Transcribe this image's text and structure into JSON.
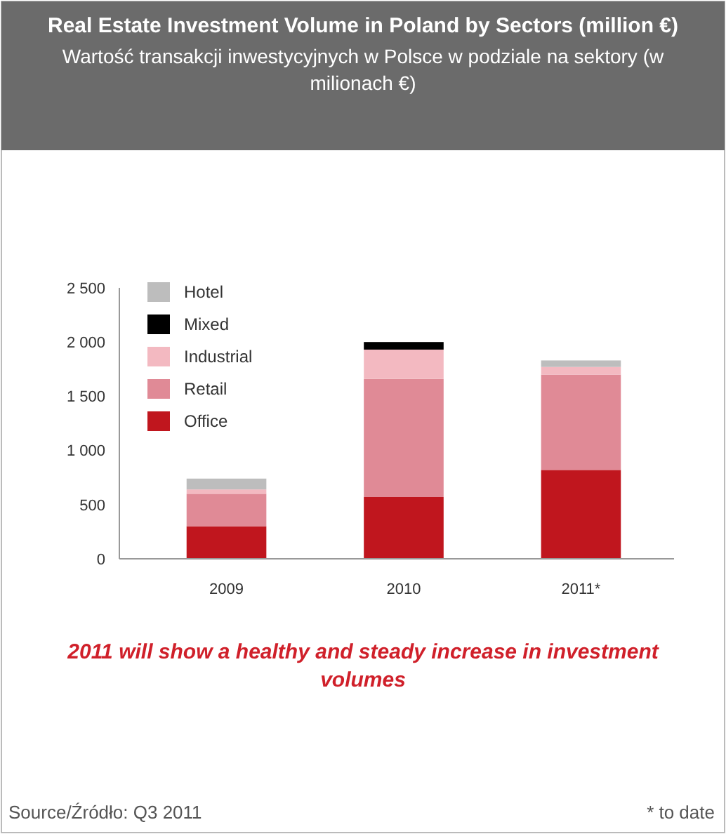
{
  "chart_data": {
    "type": "bar",
    "stacked": true,
    "title": "Real Estate Investment Volume in Poland by Sectors (million €)",
    "subtitle": "Wartość transakcji inwestycyjnych w Polsce w podziale na sektory (w milionach €)",
    "categories": [
      "2009",
      "2010",
      "2011*"
    ],
    "series": [
      {
        "name": "Office",
        "color": "#c0161e",
        "values": [
          300,
          570,
          820
        ]
      },
      {
        "name": "Retail",
        "color": "#e08a96",
        "values": [
          300,
          1090,
          880
        ]
      },
      {
        "name": "Industrial",
        "color": "#f3b9c1",
        "values": [
          40,
          270,
          70
        ]
      },
      {
        "name": "Mixed",
        "color": "#000000",
        "values": [
          0,
          70,
          0
        ]
      },
      {
        "name": "Hotel",
        "color": "#bdbdbd",
        "values": [
          100,
          0,
          60
        ]
      }
    ],
    "ylim": [
      0,
      2500
    ],
    "yticks": [
      0,
      500,
      {
        "value": 1000,
        "label": "1 000"
      },
      {
        "value": 1500,
        "label": "1 500"
      },
      {
        "value": 2000,
        "label": "2 000"
      },
      {
        "value": 2500,
        "label": "2 500"
      }
    ],
    "grid": false,
    "legend": "top left",
    "annotations": [
      "2011 will show a healthy and steady increase in investment volumes",
      "Source/Źródło: Q3 2011",
      "* to date"
    ]
  }
}
